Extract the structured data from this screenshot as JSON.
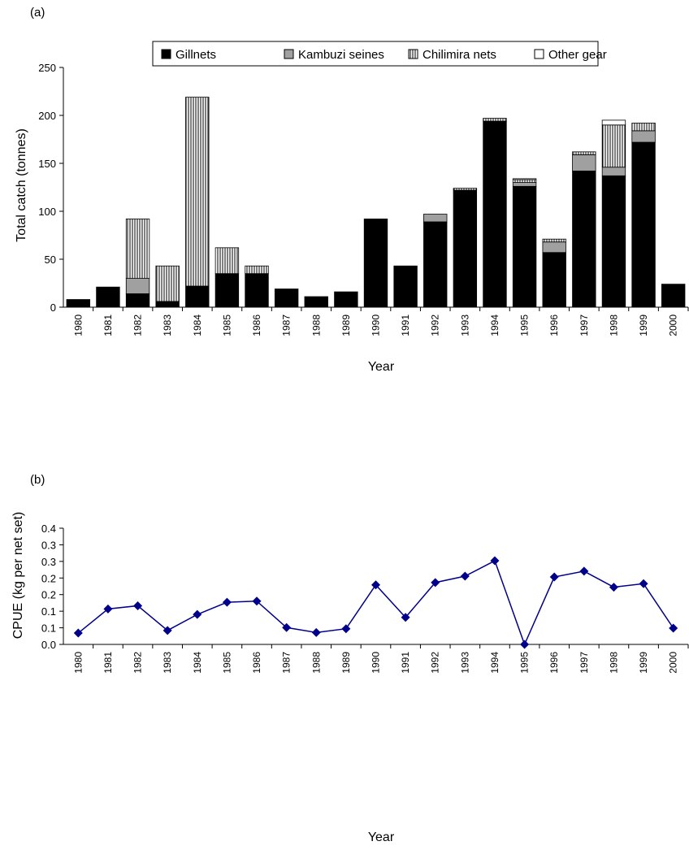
{
  "panel_a": {
    "label": "(a)"
  },
  "panel_b": {
    "label": "(b)"
  },
  "colors": {
    "gillnets": "#000000",
    "kambuzi": "#a0a0a0",
    "chilimira": "#ffffff",
    "other": "#ffffff",
    "line": "#00008b"
  },
  "chart_data": [
    {
      "type": "bar",
      "stacked": true,
      "xlabel": "Year",
      "ylabel": "Total catch (tonnes)",
      "ylim": [
        0,
        250
      ],
      "yticks": [
        "0",
        "50",
        "100",
        "150",
        "200",
        "250"
      ],
      "legend_position": "top",
      "categories": [
        "1980",
        "1981",
        "1982",
        "1983",
        "1984",
        "1985",
        "1986",
        "1987",
        "1988",
        "1989",
        "1990",
        "1991",
        "1992",
        "1993",
        "1994",
        "1995",
        "1996",
        "1997",
        "1998",
        "1999",
        "2000"
      ],
      "series": [
        {
          "name": "Gillnets",
          "values": [
            8,
            21,
            14,
            6,
            22,
            35,
            35,
            19,
            11,
            16,
            92,
            43,
            89,
            122,
            194,
            126,
            57,
            142,
            137,
            172,
            24
          ]
        },
        {
          "name": "Kambuzi seines",
          "values": [
            0,
            0,
            16,
            0,
            0,
            0,
            0,
            0,
            0,
            0,
            0,
            0,
            8,
            0,
            0,
            4,
            11,
            17,
            9,
            12,
            0
          ]
        },
        {
          "name": "Chilimira nets",
          "values": [
            0,
            0,
            62,
            37,
            197,
            27,
            8,
            0,
            0,
            0,
            0,
            0,
            0,
            2,
            3,
            3,
            3,
            3,
            44,
            8,
            0
          ]
        },
        {
          "name": "Other gear",
          "values": [
            0,
            0,
            0,
            0,
            0,
            0,
            0,
            0,
            0,
            0,
            0,
            0,
            0,
            0,
            0,
            1,
            0,
            0,
            5,
            0,
            0
          ]
        }
      ]
    },
    {
      "type": "line",
      "xlabel": "Year",
      "ylabel": "CPUE (kg per net set)",
      "ylim": [
        0,
        0.4
      ],
      "yticks": [
        "0.0",
        "0.1",
        "0.1",
        "0.2",
        "0.2",
        "0.3",
        "0.3",
        "0.4"
      ],
      "x": [
        "1980",
        "1981",
        "1982",
        "1983",
        "1984",
        "1985",
        "1986",
        "1987",
        "1988",
        "1989",
        "1990",
        "1991",
        "1992",
        "1993",
        "1994",
        "1995",
        "1996",
        "1997",
        "1998",
        "1999",
        "2000"
      ],
      "series": [
        {
          "values": [
            0.039,
            0.122,
            0.133,
            0.048,
            0.103,
            0.145,
            0.149,
            0.058,
            0.041,
            0.054,
            0.205,
            0.093,
            0.213,
            0.235,
            0.288,
            0.0,
            0.232,
            0.252,
            0.197,
            0.209,
            0.056
          ]
        }
      ]
    }
  ]
}
